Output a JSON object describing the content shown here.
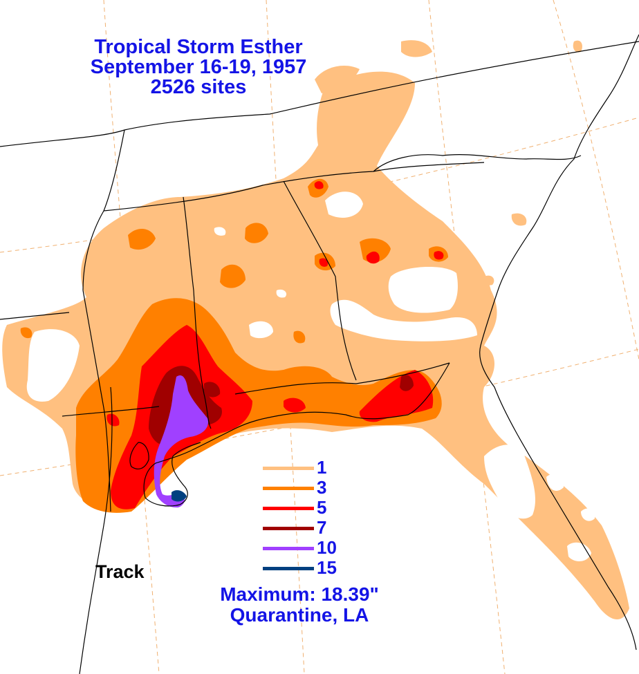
{
  "title": {
    "line1": "Tropical Storm Esther",
    "line2": "September 16-19, 1957",
    "line3": "2526 sites"
  },
  "legend": {
    "items": [
      {
        "label": "1",
        "color": "#ffc080"
      },
      {
        "label": "3",
        "color": "#ff8000"
      },
      {
        "label": "5",
        "color": "#ff0000"
      },
      {
        "label": "7",
        "color": "#a00000"
      },
      {
        "label": "10",
        "color": "#a040ff"
      },
      {
        "label": "15",
        "color": "#004080"
      }
    ]
  },
  "track_label": "Track",
  "maximum": {
    "line1": "Maximum:  18.39\"",
    "line2": "Quarantine, LA"
  },
  "colors": {
    "text_blue": "#1414e6",
    "boundary": "#000000",
    "graticule": "#f0b070",
    "land_bg": "#ffffff"
  }
}
